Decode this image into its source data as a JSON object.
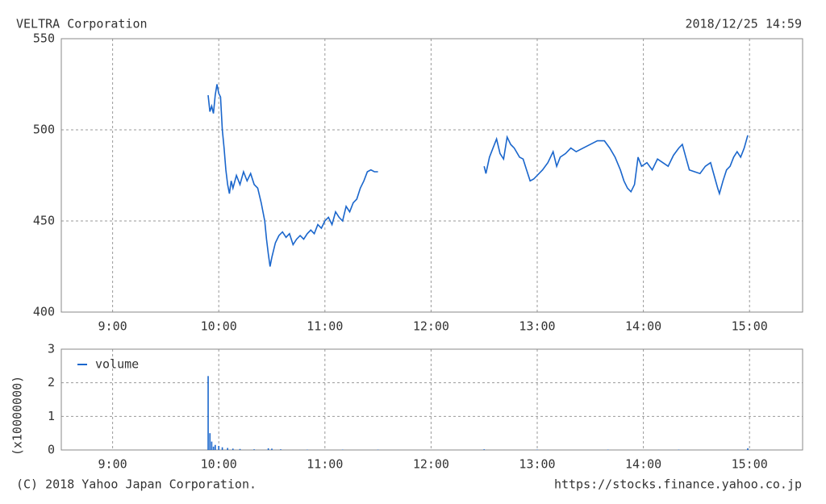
{
  "header": {
    "title": "VELTRA Corporation",
    "timestamp": "2018/12/25 14:59"
  },
  "footer": {
    "copyright": "(C) 2018 Yahoo Japan Corporation.",
    "url": "https://stocks.finance.yahoo.co.jp"
  },
  "chart_data": [
    {
      "type": "line",
      "grid": true,
      "xlim": [
        511,
        930
      ],
      "xticks": [
        {
          "value": 540,
          "label": "9:00"
        },
        {
          "value": 600,
          "label": "10:00"
        },
        {
          "value": 660,
          "label": "11:00"
        },
        {
          "value": 720,
          "label": "12:00"
        },
        {
          "value": 780,
          "label": "13:00"
        },
        {
          "value": 840,
          "label": "14:00"
        },
        {
          "value": 900,
          "label": "15:00"
        }
      ],
      "ylim": [
        400,
        550
      ],
      "yticks": [
        400,
        450,
        500,
        550
      ],
      "series": [
        {
          "color": "#1a66cc",
          "x": [
            594,
            595,
            596,
            597,
            598,
            599,
            600,
            601,
            602,
            603,
            604,
            605,
            606,
            607,
            608,
            610,
            612,
            614,
            616,
            618,
            620,
            622,
            624,
            626,
            627,
            628,
            629,
            630,
            632,
            634,
            636,
            638,
            640,
            642,
            644,
            646,
            648,
            650,
            652,
            654,
            656,
            658,
            660,
            662,
            664,
            666,
            668,
            670,
            672,
            674,
            676,
            678,
            680,
            682,
            684,
            686,
            688,
            690,
            720,
            750,
            751,
            753,
            755,
            757,
            759,
            761,
            763,
            765,
            767,
            770,
            772,
            774,
            776,
            778,
            780,
            783,
            786,
            789,
            791,
            793,
            796,
            799,
            802,
            806,
            810,
            814,
            818,
            821,
            824,
            827,
            829,
            831,
            833,
            835,
            837,
            839,
            842,
            845,
            848,
            851,
            854,
            857,
            860,
            862,
            864,
            866,
            869,
            872,
            875,
            878,
            880,
            882,
            883,
            885,
            887,
            889,
            891,
            893,
            895,
            897,
            899
          ],
          "values": [
            519,
            510,
            513,
            509,
            519,
            525,
            520,
            518,
            500,
            490,
            478,
            470,
            465,
            472,
            468,
            475,
            470,
            477,
            472,
            476,
            470,
            468,
            460,
            450,
            440,
            432,
            425,
            430,
            438,
            442,
            444,
            441,
            443,
            437,
            440,
            442,
            440,
            443,
            445,
            443,
            448,
            446,
            450,
            452,
            448,
            455,
            452,
            450,
            458,
            455,
            460,
            462,
            468,
            472,
            477,
            478,
            477,
            477,
            null,
            480,
            476,
            485,
            490,
            495,
            487,
            484,
            496,
            492,
            490,
            485,
            484,
            478,
            472,
            473,
            475,
            478,
            482,
            488,
            480,
            485,
            487,
            490,
            488,
            490,
            492,
            494,
            494,
            490,
            485,
            478,
            472,
            468,
            466,
            470,
            485,
            480,
            482,
            478,
            484,
            482,
            480,
            486,
            490,
            492,
            485,
            478,
            477,
            476,
            480,
            482,
            475,
            468,
            465,
            472,
            478,
            480,
            485,
            488,
            485,
            490,
            497
          ]
        }
      ]
    },
    {
      "type": "bar",
      "grid": true,
      "legend": "upper left",
      "ylabel": "(x10000000)",
      "xlim": [
        511,
        930
      ],
      "xticks": [
        {
          "value": 540,
          "label": "9:00"
        },
        {
          "value": 600,
          "label": "10:00"
        },
        {
          "value": 660,
          "label": "11:00"
        },
        {
          "value": 720,
          "label": "12:00"
        },
        {
          "value": 780,
          "label": "13:00"
        },
        {
          "value": 840,
          "label": "14:00"
        },
        {
          "value": 900,
          "label": "15:00"
        }
      ],
      "ylim": [
        0,
        3
      ],
      "yticks": [
        0,
        1,
        2,
        3
      ],
      "series": [
        {
          "name": "volume",
          "color": "#1a66cc",
          "x": [
            594,
            595,
            596,
            597,
            598,
            600,
            602,
            605,
            608,
            612,
            620,
            628,
            630,
            635,
            650,
            670,
            690,
            750,
            780,
            820,
            860,
            899
          ],
          "values": [
            2.2,
            0.5,
            0.25,
            0.1,
            0.15,
            0.12,
            0.08,
            0.06,
            0.04,
            0.03,
            0.02,
            0.05,
            0.04,
            0.02,
            0.01,
            0.01,
            0.01,
            0.02,
            0.01,
            0.01,
            0.01,
            0.05
          ]
        }
      ]
    }
  ]
}
